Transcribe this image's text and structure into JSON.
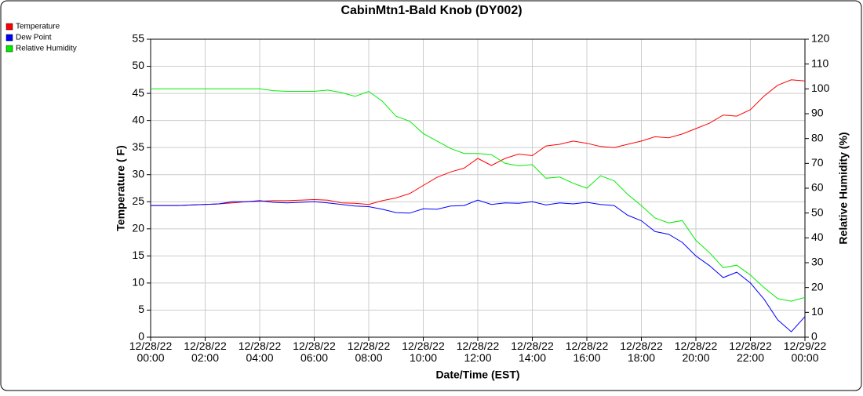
{
  "chart_data": {
    "type": "line",
    "title": "CabinMtn1-Bald Knob (DY002)",
    "x_label": "Date/Time (EST)",
    "y_label": "Temperature ( F)",
    "y2_label": "Relative Humidity (%)",
    "x": [
      "12/28/22 00:00",
      "12/28/22 00:30",
      "12/28/22 01:00",
      "12/28/22 01:30",
      "12/28/22 02:00",
      "12/28/22 02:30",
      "12/28/22 03:00",
      "12/28/22 03:30",
      "12/28/22 04:00",
      "12/28/22 04:30",
      "12/28/22 05:00",
      "12/28/22 05:30",
      "12/28/22 06:00",
      "12/28/22 06:30",
      "12/28/22 07:00",
      "12/28/22 07:30",
      "12/28/22 08:00",
      "12/28/22 08:30",
      "12/28/22 09:00",
      "12/28/22 09:30",
      "12/28/22 10:00",
      "12/28/22 10:30",
      "12/28/22 11:00",
      "12/28/22 11:30",
      "12/28/22 12:00",
      "12/28/22 12:30",
      "12/28/22 13:00",
      "12/28/22 13:30",
      "12/28/22 14:00",
      "12/28/22 14:30",
      "12/28/22 15:00",
      "12/28/22 15:30",
      "12/28/22 16:00",
      "12/28/22 16:30",
      "12/28/22 17:00",
      "12/28/22 17:30",
      "12/28/22 18:00",
      "12/28/22 18:30",
      "12/28/22 19:00",
      "12/28/22 19:30",
      "12/28/22 20:00",
      "12/28/22 20:30",
      "12/28/22 21:00",
      "12/28/22 21:30",
      "12/28/22 22:00",
      "12/28/22 22:30",
      "12/28/22 23:00",
      "12/28/22 23:30",
      "12/29/22 00:00"
    ],
    "series": [
      {
        "name": "Temperature",
        "color": "#ff0000",
        "values": [
          24.3,
          24.3,
          24.3,
          24.4,
          24.5,
          24.6,
          24.8,
          25,
          25.1,
          25.2,
          25.2,
          25.3,
          25.4,
          25.3,
          24.8,
          24.7,
          24.5,
          25.2,
          25.7,
          26.5,
          28,
          29.5,
          30.5,
          31.2,
          33,
          31.7,
          33,
          33.8,
          33.5,
          35.3,
          35.6,
          36.2,
          35.8,
          35.2,
          35,
          35.6,
          36.2,
          37,
          36.8,
          37.5,
          38.5,
          39.5,
          41,
          40.8,
          42,
          44.5,
          46.5,
          47.5,
          47.3
        ]
      },
      {
        "name": "Dew Point",
        "color": "#0000ff",
        "values": [
          24.3,
          24.3,
          24.3,
          24.4,
          24.5,
          24.6,
          25,
          25,
          25.2,
          24.9,
          24.8,
          24.9,
          25,
          24.8,
          24.5,
          24.2,
          24.1,
          23.6,
          23,
          22.9,
          23.7,
          23.6,
          24.2,
          24.3,
          25.3,
          24.5,
          24.8,
          24.7,
          25,
          24.4,
          24.8,
          24.6,
          24.9,
          24.5,
          24.3,
          22.5,
          21.5,
          19.5,
          19,
          17.5,
          15,
          13.2,
          11,
          12,
          10,
          7,
          3.2,
          1,
          3.8
        ]
      },
      {
        "name": "Relative Humidity",
        "color": "#00ee00",
        "axis": "y2",
        "values": [
          100,
          100,
          100,
          100,
          100,
          100,
          100,
          100,
          100,
          99.3,
          99,
          99,
          99,
          99.5,
          98.5,
          97,
          99,
          95,
          89,
          87,
          82,
          79,
          76,
          74,
          74,
          73.5,
          70,
          69,
          69.5,
          64,
          64.5,
          62,
          60,
          65,
          63,
          57.5,
          53,
          48,
          46,
          47,
          39,
          34,
          28,
          29,
          25,
          20,
          15.5,
          14.5,
          16
        ]
      }
    ],
    "xlim": [
      "12/28/22 00:00",
      "12/29/22 00:00"
    ],
    "xticks": [
      "12/28/22 00:00",
      "12/28/22 02:00",
      "12/28/22 04:00",
      "12/28/22 06:00",
      "12/28/22 08:00",
      "12/28/22 10:00",
      "12/28/22 12:00",
      "12/28/22 14:00",
      "12/28/22 16:00",
      "12/28/22 18:00",
      "12/28/22 20:00",
      "12/28/22 22:00",
      "12/29/22 00:00"
    ],
    "ylim": [
      0,
      55
    ],
    "yticks": [
      0,
      5,
      10,
      15,
      20,
      25,
      30,
      35,
      40,
      45,
      50,
      55
    ],
    "y2lim": [
      0,
      120
    ],
    "y2ticks": [
      0,
      10,
      20,
      30,
      40,
      50,
      60,
      70,
      80,
      90,
      100,
      110,
      120
    ],
    "grid": true,
    "legend": "top-left"
  }
}
